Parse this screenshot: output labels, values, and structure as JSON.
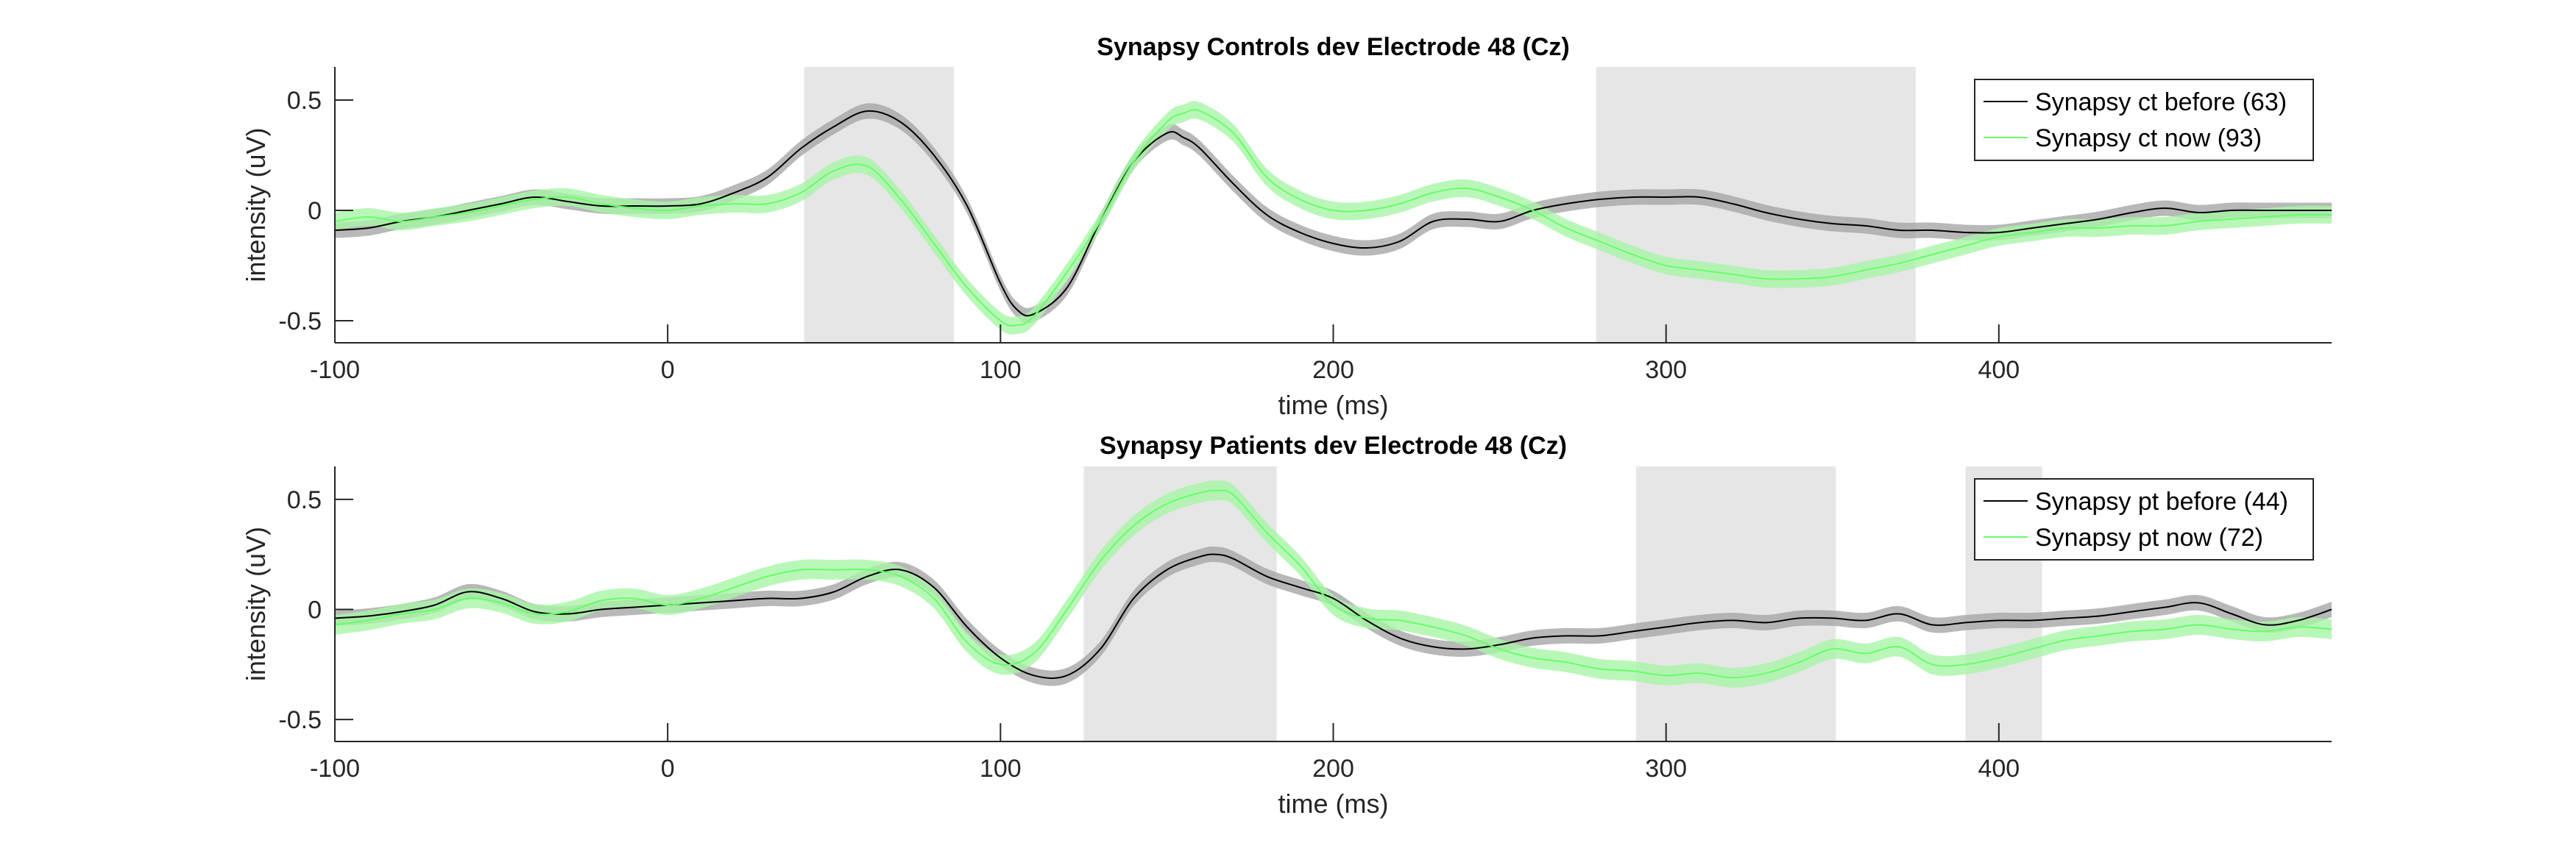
{
  "chart_data": [
    {
      "type": "line",
      "title": "Synapsy Controls dev Electrode 48 (Cz)",
      "xlabel": "time (ms)",
      "ylabel": "intensity (uV)",
      "xlim": [
        -100,
        500
      ],
      "ylim": [
        -0.6,
        0.65
      ],
      "xticks": [
        -100,
        0,
        100,
        200,
        300,
        400
      ],
      "yticks": [
        -0.5,
        0,
        0.5
      ],
      "ytick_labels": [
        "-0.5",
        "0",
        "0.5"
      ],
      "legend_position": "top-right",
      "shaded_windows": [
        [
          41,
          86
        ],
        [
          279,
          375
        ]
      ],
      "series": [
        {
          "name": "Synapsy ct before (63)",
          "color": "#000000",
          "band_color": "#a6a6a6",
          "band_half_width": 0.035,
          "x": [
            -100,
            -90,
            -80,
            -70,
            -60,
            -50,
            -40,
            -30,
            -20,
            -10,
            0,
            10,
            20,
            30,
            40,
            50,
            60,
            70,
            80,
            90,
            100,
            105,
            110,
            120,
            130,
            140,
            150,
            155,
            160,
            170,
            180,
            190,
            200,
            210,
            220,
            230,
            240,
            250,
            260,
            270,
            280,
            290,
            300,
            310,
            320,
            330,
            340,
            350,
            360,
            370,
            380,
            390,
            400,
            410,
            420,
            430,
            440,
            450,
            460,
            470,
            480,
            490,
            500
          ],
          "y": [
            -0.09,
            -0.08,
            -0.05,
            -0.03,
            0.0,
            0.03,
            0.06,
            0.04,
            0.02,
            0.02,
            0.02,
            0.03,
            0.08,
            0.15,
            0.28,
            0.38,
            0.45,
            0.4,
            0.25,
            0.02,
            -0.33,
            -0.45,
            -0.47,
            -0.35,
            -0.05,
            0.22,
            0.35,
            0.33,
            0.28,
            0.12,
            -0.02,
            -0.1,
            -0.15,
            -0.17,
            -0.14,
            -0.05,
            -0.04,
            -0.05,
            0.0,
            0.03,
            0.05,
            0.06,
            0.06,
            0.06,
            0.03,
            -0.01,
            -0.04,
            -0.06,
            -0.07,
            -0.09,
            -0.09,
            -0.1,
            -0.1,
            -0.08,
            -0.06,
            -0.04,
            -0.01,
            0.01,
            -0.01,
            0.0,
            0.0,
            0.0,
            0.0
          ]
        },
        {
          "name": "Synapsy ct now (93)",
          "color": "#66ff66",
          "band_color": "#a7f5a7",
          "band_half_width": 0.04,
          "x": [
            -100,
            -90,
            -80,
            -70,
            -60,
            -50,
            -40,
            -30,
            -20,
            -10,
            0,
            10,
            20,
            30,
            40,
            50,
            60,
            70,
            80,
            90,
            100,
            105,
            110,
            120,
            130,
            140,
            150,
            155,
            160,
            170,
            180,
            190,
            200,
            210,
            220,
            230,
            240,
            250,
            260,
            270,
            280,
            290,
            300,
            310,
            320,
            330,
            340,
            350,
            360,
            370,
            380,
            390,
            400,
            410,
            420,
            430,
            440,
            450,
            460,
            470,
            480,
            490,
            500
          ],
          "y": [
            -0.05,
            -0.03,
            -0.05,
            -0.03,
            -0.01,
            0.02,
            0.05,
            0.06,
            0.03,
            0.01,
            0.0,
            0.02,
            0.03,
            0.03,
            0.08,
            0.18,
            0.2,
            0.05,
            -0.15,
            -0.35,
            -0.5,
            -0.52,
            -0.48,
            -0.28,
            -0.05,
            0.22,
            0.4,
            0.44,
            0.45,
            0.35,
            0.15,
            0.05,
            0.0,
            0.0,
            0.03,
            0.08,
            0.1,
            0.06,
            0.0,
            -0.08,
            -0.14,
            -0.2,
            -0.25,
            -0.27,
            -0.29,
            -0.31,
            -0.31,
            -0.3,
            -0.27,
            -0.24,
            -0.2,
            -0.16,
            -0.12,
            -0.1,
            -0.08,
            -0.08,
            -0.07,
            -0.07,
            -0.05,
            -0.04,
            -0.03,
            -0.02,
            -0.02
          ]
        }
      ]
    },
    {
      "type": "line",
      "title": "Synapsy Patients dev Electrode 48 (Cz)",
      "xlabel": "time (ms)",
      "ylabel": "intensity (uV)",
      "xlim": [
        -100,
        500
      ],
      "ylim": [
        -0.6,
        0.65
      ],
      "xticks": [
        -100,
        0,
        100,
        200,
        300,
        400
      ],
      "yticks": [
        -0.5,
        0,
        0.5
      ],
      "ytick_labels": [
        "-0.5",
        "0",
        "0.5"
      ],
      "legend_position": "top-right",
      "shaded_windows": [
        [
          125,
          183
        ],
        [
          291,
          351
        ],
        [
          390,
          413
        ]
      ],
      "series": [
        {
          "name": "Synapsy pt before (44)",
          "color": "#000000",
          "band_color": "#a6a6a6",
          "band_half_width": 0.035,
          "x": [
            -100,
            -90,
            -80,
            -70,
            -60,
            -50,
            -40,
            -30,
            -20,
            -10,
            0,
            10,
            20,
            30,
            40,
            50,
            60,
            70,
            80,
            90,
            100,
            110,
            120,
            130,
            140,
            150,
            160,
            165,
            170,
            180,
            190,
            200,
            210,
            220,
            230,
            240,
            250,
            260,
            270,
            280,
            290,
            300,
            310,
            320,
            330,
            340,
            350,
            360,
            370,
            380,
            390,
            400,
            410,
            420,
            430,
            440,
            450,
            460,
            470,
            480,
            490,
            500
          ],
          "y": [
            -0.04,
            -0.03,
            -0.01,
            0.02,
            0.08,
            0.05,
            -0.01,
            -0.02,
            0.0,
            0.01,
            0.02,
            0.03,
            0.04,
            0.05,
            0.05,
            0.08,
            0.15,
            0.18,
            0.1,
            -0.08,
            -0.22,
            -0.3,
            -0.3,
            -0.18,
            0.05,
            0.18,
            0.24,
            0.25,
            0.23,
            0.15,
            0.1,
            0.05,
            -0.05,
            -0.13,
            -0.17,
            -0.18,
            -0.16,
            -0.13,
            -0.12,
            -0.12,
            -0.1,
            -0.08,
            -0.06,
            -0.05,
            -0.06,
            -0.04,
            -0.04,
            -0.05,
            -0.02,
            -0.07,
            -0.06,
            -0.05,
            -0.05,
            -0.04,
            -0.03,
            -0.01,
            0.01,
            0.03,
            -0.02,
            -0.07,
            -0.05,
            0.0
          ]
        },
        {
          "name": "Synapsy pt now (72)",
          "color": "#66ff66",
          "band_color": "#a7f5a7",
          "band_half_width": 0.045,
          "x": [
            -100,
            -90,
            -80,
            -70,
            -60,
            -50,
            -40,
            -30,
            -20,
            -10,
            0,
            10,
            20,
            30,
            40,
            50,
            60,
            70,
            80,
            90,
            100,
            110,
            120,
            130,
            140,
            150,
            160,
            165,
            170,
            180,
            190,
            200,
            210,
            220,
            230,
            240,
            250,
            260,
            270,
            280,
            290,
            300,
            310,
            320,
            330,
            340,
            350,
            360,
            370,
            380,
            390,
            400,
            410,
            420,
            430,
            440,
            450,
            460,
            470,
            480,
            490,
            500
          ],
          "y": [
            -0.07,
            -0.05,
            -0.02,
            0.0,
            0.05,
            0.03,
            -0.02,
            -0.01,
            0.04,
            0.05,
            0.02,
            0.05,
            0.1,
            0.15,
            0.18,
            0.18,
            0.18,
            0.15,
            0.05,
            -0.15,
            -0.25,
            -0.2,
            0.0,
            0.22,
            0.38,
            0.48,
            0.53,
            0.54,
            0.52,
            0.35,
            0.2,
            0.02,
            -0.04,
            -0.05,
            -0.08,
            -0.12,
            -0.18,
            -0.22,
            -0.24,
            -0.27,
            -0.28,
            -0.3,
            -0.29,
            -0.31,
            -0.29,
            -0.24,
            -0.18,
            -0.2,
            -0.17,
            -0.25,
            -0.25,
            -0.22,
            -0.18,
            -0.14,
            -0.12,
            -0.1,
            -0.09,
            -0.07,
            -0.09,
            -0.1,
            -0.08,
            -0.09
          ]
        }
      ]
    }
  ]
}
